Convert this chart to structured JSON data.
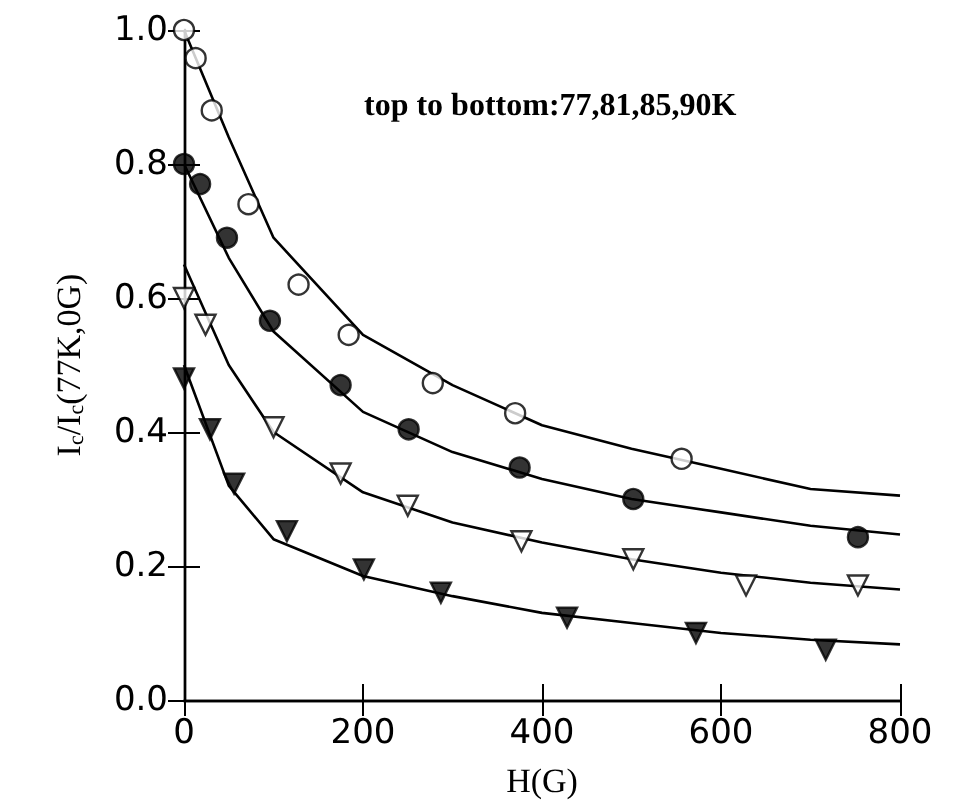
{
  "chart_data": {
    "type": "scatter",
    "xlabel": "H(G)",
    "ylabel": "I$_{c}$/I$_{c}$(77K,0G)",
    "annotations": [
      "top to bottom:77,81,85,90K"
    ],
    "xlim": [
      0,
      800
    ],
    "ylim": [
      0,
      1
    ],
    "xticks": [
      0,
      200,
      400,
      600,
      800
    ],
    "yticks": [
      {
        "value": 0,
        "label": "0.0"
      },
      {
        "value": 0.2,
        "label": "0.2"
      },
      {
        "value": 0.4,
        "label": "0.4"
      },
      {
        "value": 0.6,
        "label": "0.6"
      },
      {
        "value": 0.8,
        "label": "0.8"
      },
      {
        "value": 1,
        "label": "1.0"
      }
    ],
    "grid": false,
    "series": [
      {
        "marker": "circle",
        "color": "#ffffff",
        "x": [
          0,
          13,
          31,
          72,
          128,
          184,
          278,
          370,
          556
        ],
        "values": [
          1.0,
          0.958,
          0.88,
          0.74,
          0.62,
          0.545,
          0.473,
          0.428,
          0.36
        ]
      },
      {
        "marker": "circle",
        "color": "#000000",
        "x": [
          0,
          18,
          48,
          96,
          175,
          251,
          375,
          502,
          753
        ],
        "values": [
          0.8,
          0.77,
          0.69,
          0.566,
          0.47,
          0.404,
          0.347,
          0.3,
          0.243
        ]
      },
      {
        "marker": "triangle",
        "color": "#ffffff",
        "x": [
          0,
          24,
          100,
          175,
          250,
          377,
          502,
          628,
          753
        ],
        "values": [
          0.6,
          0.56,
          0.407,
          0.338,
          0.29,
          0.237,
          0.21,
          0.171,
          0.171
        ]
      },
      {
        "marker": "triangle",
        "color": "#000000",
        "x": [
          0,
          29,
          56,
          115,
          201,
          287,
          428,
          572,
          717
        ],
        "values": [
          0.48,
          0.404,
          0.323,
          0.252,
          0.195,
          0.16,
          0.123,
          0.1,
          0.075
        ]
      },
      {
        "type": "line",
        "color": "#000000",
        "x": [
          0,
          50,
          100,
          200,
          300,
          400,
          500,
          600,
          700,
          800
        ],
        "values": [
          1.0,
          0.84,
          0.69,
          0.545,
          0.47,
          0.41,
          0.375,
          0.345,
          0.315,
          0.305
        ]
      },
      {
        "type": "line",
        "color": "#000000",
        "x": [
          0,
          50,
          100,
          200,
          300,
          400,
          500,
          600,
          700,
          800
        ],
        "values": [
          0.8,
          0.66,
          0.55,
          0.43,
          0.37,
          0.33,
          0.3,
          0.28,
          0.26,
          0.247
        ]
      },
      {
        "type": "line",
        "color": "#000000",
        "x": [
          0,
          50,
          100,
          200,
          300,
          400,
          500,
          600,
          700,
          800
        ],
        "values": [
          0.65,
          0.5,
          0.4,
          0.31,
          0.265,
          0.235,
          0.21,
          0.19,
          0.175,
          0.165
        ]
      },
      {
        "type": "line",
        "color": "#000000",
        "x": [
          0,
          50,
          100,
          200,
          300,
          400,
          500,
          600,
          700,
          800
        ],
        "values": [
          0.5,
          0.32,
          0.24,
          0.185,
          0.155,
          0.13,
          0.115,
          0.1,
          0.09,
          0.083
        ]
      }
    ]
  }
}
